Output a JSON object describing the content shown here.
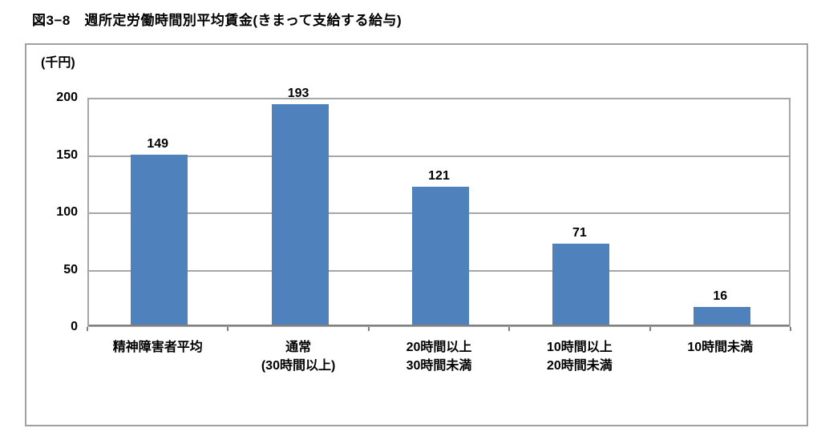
{
  "figure": {
    "title": "図3−8　週所定労働時間別平均賃金(きまって支給する給与)"
  },
  "chart_data": {
    "type": "bar",
    "title": "週所定労働時間別平均賃金(きまって支給する給与)",
    "unit_label": "(千円)",
    "categories": [
      "精神障害者平均",
      "通常\n(30時間以上)",
      "20時間以上\n30時間未満",
      "10時間以上\n20時間未満",
      "10時間未満"
    ],
    "values": [
      149,
      193,
      121,
      71,
      16
    ],
    "ylabel": "(千円)",
    "ylim": [
      0,
      200
    ],
    "yticks": [
      0,
      50,
      100,
      150,
      200
    ],
    "grid": true,
    "legend": "none",
    "colors": {
      "bar": "#4F81BD",
      "gridline": "#A6A6A6",
      "plot_border": "#A6A6A6",
      "axis_line": "#808080",
      "frame_border": "#A0A0A0",
      "text": "#000000"
    }
  }
}
